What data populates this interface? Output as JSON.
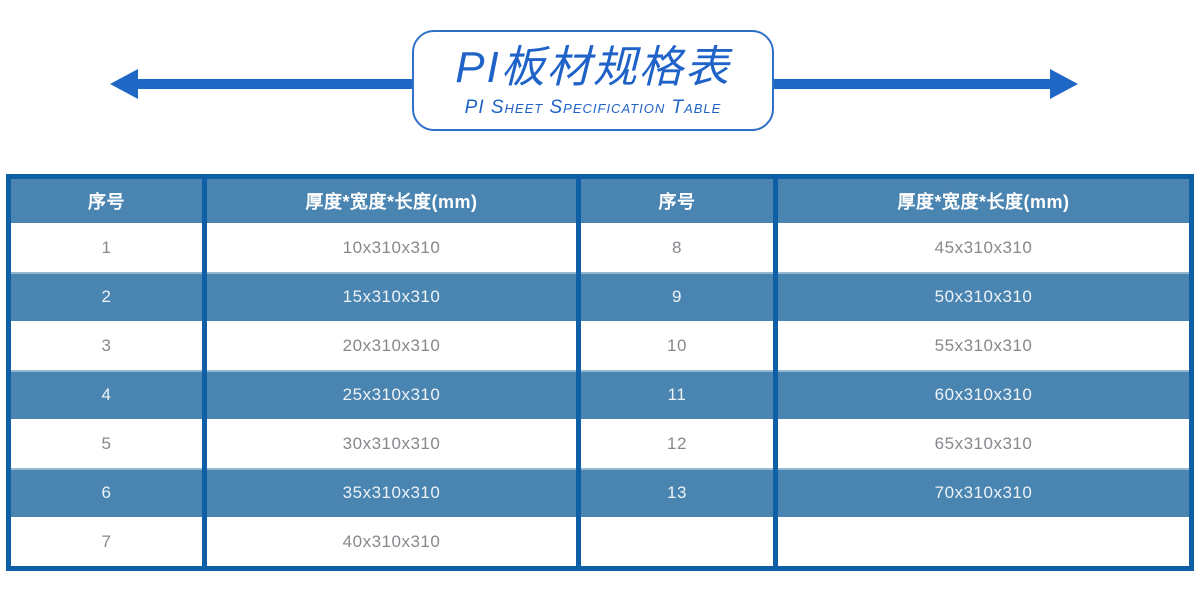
{
  "banner": {
    "title": "PI板材规格表",
    "subtitle": "PI Sheet Specification Table"
  },
  "table": {
    "columns": [
      "序号",
      "厚度*宽度*长度(mm)",
      "序号",
      "厚度*宽度*长度(mm)"
    ],
    "rows": [
      [
        "1",
        "10x310x310",
        "8",
        "45x310x310"
      ],
      [
        "2",
        "15x310x310",
        "9",
        "50x310x310"
      ],
      [
        "3",
        "20x310x310",
        "10",
        "55x310x310"
      ],
      [
        "4",
        "25x310x310",
        "11",
        "60x310x310"
      ],
      [
        "5",
        "30x310x310",
        "12",
        "65x310x310"
      ],
      [
        "6",
        "35x310x310",
        "13",
        "70x310x310"
      ],
      [
        "7",
        "40x310x310",
        "",
        ""
      ]
    ]
  },
  "colors": {
    "accent_blue": "#1f67c4",
    "box_border_blue": "#2e70c8",
    "title_blue": "#2063c8",
    "steel_blue": "#4a84b1",
    "border_blue": "#0e5fa6",
    "row_text_gray": "#85898d",
    "row_text_light": "#eef3f7"
  }
}
